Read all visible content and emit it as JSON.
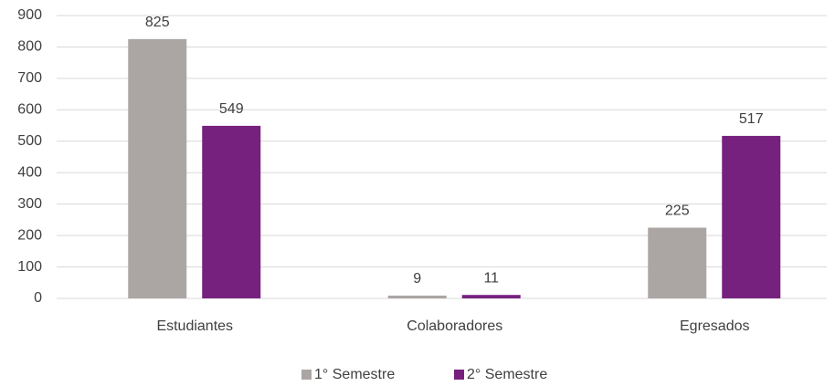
{
  "chart_data": {
    "type": "bar",
    "categories": [
      "Estudiantes",
      "Colaboradores",
      "Egresados"
    ],
    "series": [
      {
        "name": "1° Semestre",
        "color": "#aba6a4",
        "values": [
          825,
          9,
          225
        ]
      },
      {
        "name": "2° Semestre",
        "color": "#77217f",
        "values": [
          549,
          11,
          517
        ]
      }
    ],
    "ylim": [
      0,
      900
    ],
    "yticks": [
      0,
      100,
      200,
      300,
      400,
      500,
      600,
      700,
      800,
      900
    ],
    "grid": true,
    "legend": "bottom"
  }
}
